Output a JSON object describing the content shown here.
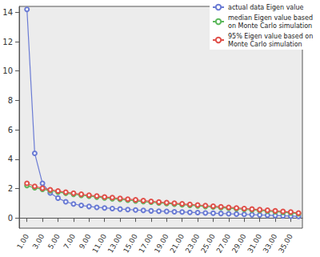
{
  "chart_data": {
    "type": "line",
    "x": [
      1,
      2,
      3,
      4,
      5,
      6,
      7,
      8,
      9,
      10,
      11,
      12,
      13,
      14,
      15,
      16,
      17,
      18,
      19,
      20,
      21,
      22,
      23,
      24,
      25,
      26,
      27,
      28,
      29,
      30,
      31,
      32,
      33,
      34,
      35,
      36
    ],
    "series": [
      {
        "name": "actual data Eigen value",
        "color": "#6a7bd4",
        "marker": "emptyCircle",
        "values": [
          14.2,
          4.4,
          2.35,
          1.7,
          1.35,
          1.1,
          0.95,
          0.85,
          0.78,
          0.72,
          0.68,
          0.64,
          0.6,
          0.57,
          0.54,
          0.51,
          0.48,
          0.46,
          0.44,
          0.42,
          0.4,
          0.38,
          0.36,
          0.34,
          0.32,
          0.3,
          0.28,
          0.26,
          0.24,
          0.22,
          0.2,
          0.18,
          0.16,
          0.14,
          0.12,
          0.1
        ]
      },
      {
        "name": "median Eigen value based on Monte Carlo simulation",
        "color": "#5cb85c",
        "marker": "emptyCircle",
        "values": [
          2.2,
          2.05,
          1.95,
          1.85,
          1.76,
          1.68,
          1.61,
          1.54,
          1.48,
          1.42,
          1.36,
          1.31,
          1.26,
          1.21,
          1.16,
          1.11,
          1.07,
          1.02,
          0.98,
          0.94,
          0.9,
          0.86,
          0.82,
          0.78,
          0.74,
          0.7,
          0.66,
          0.62,
          0.58,
          0.54,
          0.5,
          0.46,
          0.42,
          0.38,
          0.34,
          0.28
        ]
      },
      {
        "name": "95% Eigen value based on Monte Carlo simulation",
        "color": "#e0504a",
        "marker": "emptyCircle",
        "values": [
          2.35,
          2.15,
          2.02,
          1.92,
          1.83,
          1.75,
          1.68,
          1.61,
          1.55,
          1.49,
          1.43,
          1.38,
          1.33,
          1.28,
          1.23,
          1.18,
          1.13,
          1.08,
          1.04,
          1.0,
          0.96,
          0.92,
          0.88,
          0.84,
          0.8,
          0.76,
          0.72,
          0.68,
          0.64,
          0.6,
          0.56,
          0.52,
          0.48,
          0.44,
          0.4,
          0.33
        ]
      }
    ],
    "xlim": [
      0,
      36.5
    ],
    "xticks": [
      {
        "value": 1,
        "label": "1.00"
      },
      {
        "value": 3,
        "label": "3.00"
      },
      {
        "value": 5,
        "label": "5.00"
      },
      {
        "value": 7,
        "label": "7.00"
      },
      {
        "value": 9,
        "label": "9.00"
      },
      {
        "value": 11,
        "label": "11.00"
      },
      {
        "value": 13,
        "label": "13.00"
      },
      {
        "value": 15,
        "label": "15.00"
      },
      {
        "value": 17,
        "label": "17.00"
      },
      {
        "value": 19,
        "label": "19.00"
      },
      {
        "value": 21,
        "label": "21.00"
      },
      {
        "value": 23,
        "label": "23.00"
      },
      {
        "value": 25,
        "label": "25.00"
      },
      {
        "value": 27,
        "label": "27.00"
      },
      {
        "value": 29,
        "label": "29.00"
      },
      {
        "value": 31,
        "label": "31.00"
      },
      {
        "value": 33,
        "label": "33.00"
      },
      {
        "value": 35,
        "label": "35.00"
      }
    ],
    "ylim": [
      -0.7,
      14.4
    ],
    "yticks": [
      0,
      2,
      4,
      6,
      8,
      10,
      12,
      14
    ],
    "grid": false,
    "legend": "upper right"
  }
}
